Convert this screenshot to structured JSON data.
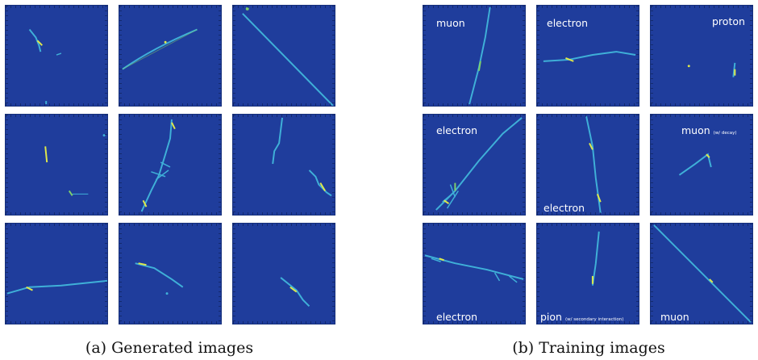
{
  "colors": {
    "background": "#1f3d9c",
    "track": "#3fb0d8",
    "hot": "#dfe84a"
  },
  "panel_a": {
    "caption": "(a) Generated images"
  },
  "panel_b": {
    "caption": "(b) Training images",
    "labels": {
      "r0c0": "muon",
      "r0c1": "electron",
      "r0c2": "proton",
      "r1c0": "electron",
      "r1c1": "electron",
      "r1c2": "muon",
      "r1c2_note": "(w/ decay)",
      "r2c0": "electron",
      "r2c1": "pion",
      "r2c1_note": "(w/ secondary interaction)",
      "r2c2": "muon"
    }
  }
}
